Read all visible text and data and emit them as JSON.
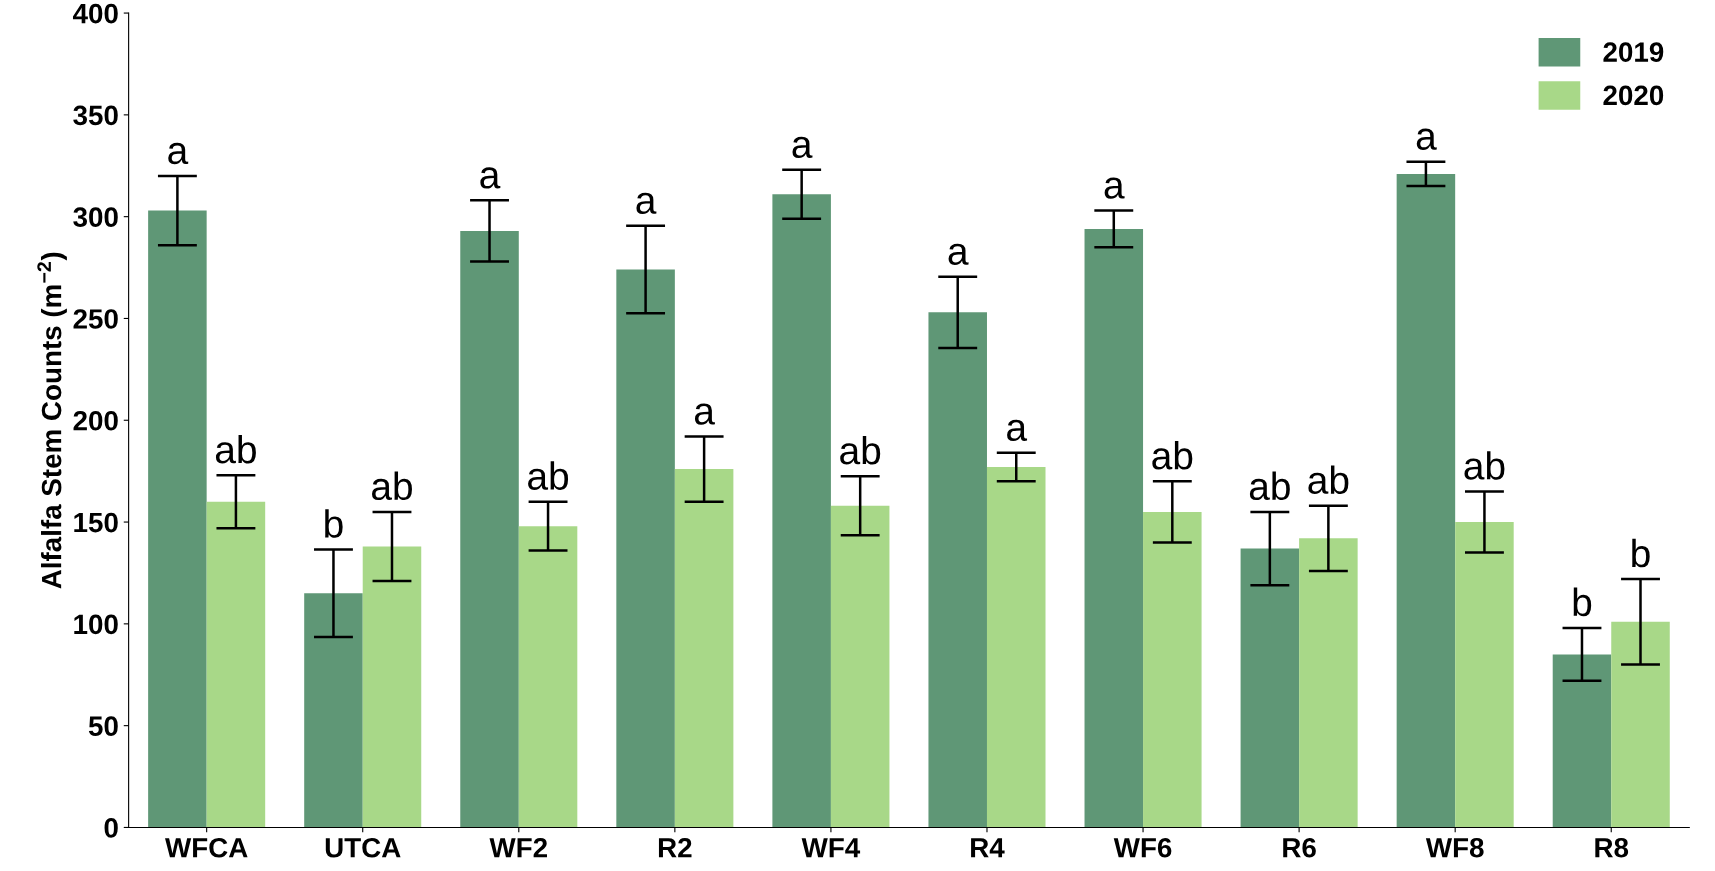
{
  "chart_data": {
    "type": "bar",
    "ylabel": "Alfalfa Stem Counts (m$^{−2}$)",
    "categories": [
      "WFCA",
      "UTCA",
      "WF2",
      "R2",
      "WF4",
      "R4",
      "WF6",
      "R6",
      "WF8",
      "R8"
    ],
    "series": [
      {
        "name": "2019",
        "color": "#5f9776",
        "values": [
          303,
          115,
          293,
          274,
          311,
          253,
          294,
          137,
          321,
          85
        ],
        "errors": [
          17,
          21.5,
          15,
          21.5,
          12,
          17.5,
          9,
          18,
          6,
          13
        ],
        "value_labels": [
          "a",
          "b",
          "a",
          "a",
          "a",
          "a",
          "a",
          "ab",
          "a",
          "b"
        ]
      },
      {
        "name": "2020",
        "color": "#a8d888",
        "values": [
          160,
          138,
          148,
          176,
          158,
          177,
          155,
          142,
          150,
          101
        ],
        "errors": [
          13,
          17,
          12,
          16,
          14.5,
          7,
          15,
          16,
          15,
          21
        ],
        "value_labels": [
          "ab",
          "ab",
          "ab",
          "a",
          "ab",
          "a",
          "ab",
          "ab",
          "ab",
          "b"
        ]
      }
    ],
    "ylim": [
      0,
      400
    ],
    "yticks": [
      0,
      50,
      100,
      150,
      200,
      250,
      300,
      350,
      400
    ],
    "grid": false,
    "legend": "top right"
  }
}
